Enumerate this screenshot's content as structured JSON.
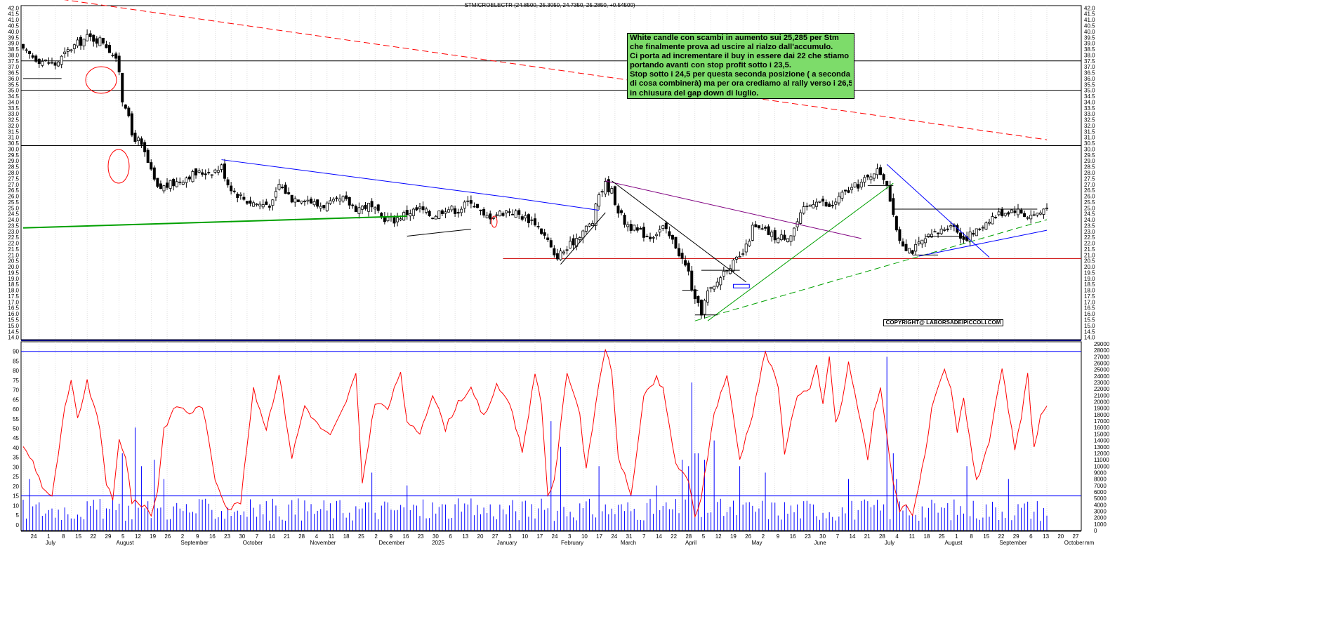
{
  "header": {
    "ohlc_text": "STMICROELECTR (24.8500, 25.3050, 24.7350, 25.2850, +0.54500)"
  },
  "annotation": {
    "lines": [
      "White candle con scambi in aumento sui 25,285 per Stm",
      "che finalmente prova ad uscire al rialzo dall'accumulo.",
      "Ci porta ad incrementare il buy in essere dai 22 che stiamo",
      "portando avanti con stop profit sotto i 23,5.",
      "Stop sotto i 24,5 per questa seconda posizione ( a seconda",
      "di cosa combinerà) ma per ora crediamo al rally verso i 26,5",
      "in chiusura del gap down di luglio."
    ],
    "background": "#7ddc6a"
  },
  "copyright": "COPYRIGHT@ LABORSADEIPICCOLI.COM",
  "colors": {
    "candle_border": "#000000",
    "volume": "#0000ff",
    "oscillator": "#ff0000",
    "downtrend": "#ff0000",
    "support": "#00a000",
    "resistance": "#0000ff",
    "divider": "#000080"
  },
  "chart_data": [
    {
      "type": "candlestick",
      "ylim": [
        13.8,
        42.2
      ],
      "y_ticks": [
        "14.0",
        "14.5",
        "15.0",
        "15.5",
        "16.0",
        "16.5",
        "17.0",
        "17.5",
        "18.0",
        "18.5",
        "19.0",
        "19.5",
        "20.0",
        "20.5",
        "21.0",
        "21.5",
        "22.0",
        "22.5",
        "23.0",
        "23.5",
        "24.0",
        "24.5",
        "25.0",
        "25.5",
        "26.0",
        "26.5",
        "27.0",
        "27.5",
        "28.0",
        "28.5",
        "29.0",
        "29.5",
        "30.0",
        "30.5",
        "31.0",
        "31.5",
        "32.0",
        "32.5",
        "33.0",
        "33.5",
        "34.0",
        "34.5",
        "35.0",
        "35.5",
        "36.0",
        "36.5",
        "37.0",
        "37.5",
        "38.0",
        "38.5",
        "39.0",
        "39.5",
        "40.0",
        "40.5",
        "41.0",
        "41.5",
        "42.0"
      ],
      "anchors_close": [
        [
          0,
          38.3
        ],
        [
          5,
          37.6
        ],
        [
          10,
          37.2
        ],
        [
          15,
          38.6
        ],
        [
          20,
          39.5
        ],
        [
          25,
          39.2
        ],
        [
          28,
          38.1
        ],
        [
          30,
          36.7
        ],
        [
          31,
          34.2
        ],
        [
          32,
          33.8
        ],
        [
          34,
          31.2
        ],
        [
          36,
          30.7
        ],
        [
          38,
          29.6
        ],
        [
          40,
          28.0
        ],
        [
          42,
          26.6
        ],
        [
          45,
          26.9
        ],
        [
          48,
          27.2
        ],
        [
          52,
          27.8
        ],
        [
          56,
          28.0
        ],
        [
          60,
          28.2
        ],
        [
          62,
          28.5
        ],
        [
          64,
          27.1
        ],
        [
          66,
          26.4
        ],
        [
          70,
          25.6
        ],
        [
          74,
          25.3
        ],
        [
          78,
          25.4
        ],
        [
          80,
          27.0
        ],
        [
          84,
          25.8
        ],
        [
          88,
          25.9
        ],
        [
          92,
          25.2
        ],
        [
          96,
          25.3
        ],
        [
          100,
          25.7
        ],
        [
          104,
          25.0
        ],
        [
          108,
          25.2
        ],
        [
          112,
          24.2
        ],
        [
          116,
          24.0
        ],
        [
          120,
          24.6
        ],
        [
          124,
          24.9
        ],
        [
          128,
          24.3
        ],
        [
          132,
          25.0
        ],
        [
          136,
          24.8
        ],
        [
          140,
          25.7
        ],
        [
          144,
          24.2
        ],
        [
          148,
          24.5
        ],
        [
          152,
          24.8
        ],
        [
          156,
          24.3
        ],
        [
          160,
          23.8
        ],
        [
          164,
          22.2
        ],
        [
          166,
          20.8
        ],
        [
          170,
          21.5
        ],
        [
          174,
          22.8
        ],
        [
          178,
          23.8
        ],
        [
          180,
          26.2
        ],
        [
          182,
          27.0
        ],
        [
          184,
          26.4
        ],
        [
          186,
          24.8
        ],
        [
          188,
          23.8
        ],
        [
          192,
          23.0
        ],
        [
          196,
          22.6
        ],
        [
          200,
          23.3
        ],
        [
          204,
          21.8
        ],
        [
          206,
          20.6
        ],
        [
          208,
          19.5
        ],
        [
          210,
          17.0
        ],
        [
          212,
          16.2
        ],
        [
          214,
          17.8
        ],
        [
          216,
          18.2
        ],
        [
          218,
          19.2
        ],
        [
          220,
          20.0
        ],
        [
          222,
          20.3
        ],
        [
          224,
          20.7
        ],
        [
          226,
          21.6
        ],
        [
          228,
          23.3
        ],
        [
          232,
          23.0
        ],
        [
          236,
          22.4
        ],
        [
          240,
          22.8
        ],
        [
          244,
          24.8
        ],
        [
          248,
          25.8
        ],
        [
          252,
          25.0
        ],
        [
          256,
          26.1
        ],
        [
          260,
          26.8
        ],
        [
          264,
          27.5
        ],
        [
          266,
          28.2
        ],
        [
          268,
          28.0
        ],
        [
          270,
          27.2
        ],
        [
          272,
          24.1
        ],
        [
          274,
          22.4
        ],
        [
          276,
          21.7
        ],
        [
          278,
          21.4
        ],
        [
          282,
          22.3
        ],
        [
          286,
          22.9
        ],
        [
          290,
          23.7
        ],
        [
          294,
          22.4
        ],
        [
          298,
          23.0
        ],
        [
          302,
          24.1
        ],
        [
          306,
          24.6
        ],
        [
          310,
          24.9
        ],
        [
          314,
          24.3
        ],
        [
          318,
          24.6
        ],
        [
          320,
          25.3
        ]
      ],
      "overlay_levels": [
        37.5,
        35.0,
        30.3,
        20.7
      ],
      "trendlines": [
        {
          "color": "#ff0000",
          "style": "dashed",
          "from": [
            0,
            43.2
          ],
          "to": [
            320,
            30.8
          ]
        },
        {
          "color": "#00a000",
          "style": "solid",
          "from": [
            0,
            23.3
          ],
          "to": [
            120,
            24.3
          ]
        },
        {
          "color": "#0000ff",
          "style": "solid",
          "from": [
            62,
            29.1
          ],
          "to": [
            152,
            25.9
          ]
        },
        {
          "color": "#0000ff",
          "style": "solid",
          "from": [
            152,
            25.9
          ],
          "to": [
            180,
            24.8
          ]
        },
        {
          "color": "#800080",
          "style": "solid",
          "from": [
            182,
            27.3
          ],
          "to": [
            262,
            22.4
          ]
        },
        {
          "color": "#000000",
          "style": "solid",
          "from": [
            184,
            27.3
          ],
          "to": [
            226,
            18.7
          ]
        },
        {
          "color": "#000000",
          "style": "solid",
          "from": [
            120,
            22.6
          ],
          "to": [
            140,
            23.2
          ]
        },
        {
          "color": "#000000",
          "style": "solid",
          "from": [
            168,
            20.2
          ],
          "to": [
            182,
            24.6
          ]
        },
        {
          "color": "#00a000",
          "style": "dashed",
          "from": [
            210,
            15.4
          ],
          "to": [
            320,
            24.0
          ]
        },
        {
          "color": "#00a000",
          "style": "solid",
          "from": [
            214,
            15.4
          ],
          "to": [
            272,
            27.1
          ]
        },
        {
          "color": "#0000ff",
          "style": "solid",
          "from": [
            270,
            28.7
          ],
          "to": [
            302,
            20.8
          ]
        },
        {
          "color": "#0000ff",
          "style": "solid",
          "from": [
            280,
            20.9
          ],
          "to": [
            320,
            23.1
          ]
        }
      ]
    },
    {
      "type": "line",
      "name": "",
      "ylim": [
        -3,
        95
      ],
      "y_ticks": [
        "0",
        "5",
        "10",
        "15",
        "20",
        "25",
        "30",
        "35",
        "40",
        "45",
        "50",
        "55",
        "60",
        "65",
        "70",
        "75",
        "80",
        "85",
        "90"
      ],
      "reference_levels": [
        90,
        15
      ],
      "anchors": [
        [
          0,
          40
        ],
        [
          3,
          33
        ],
        [
          6,
          20
        ],
        [
          9,
          14
        ],
        [
          13,
          60
        ],
        [
          15,
          74
        ],
        [
          17,
          55
        ],
        [
          20,
          74
        ],
        [
          24,
          50
        ],
        [
          26,
          22
        ],
        [
          28,
          12
        ],
        [
          30,
          44
        ],
        [
          32,
          36
        ],
        [
          34,
          12
        ],
        [
          38,
          10
        ],
        [
          40,
          5
        ],
        [
          42,
          18
        ],
        [
          44,
          50
        ],
        [
          48,
          62
        ],
        [
          52,
          58
        ],
        [
          56,
          62
        ],
        [
          60,
          24
        ],
        [
          64,
          8
        ],
        [
          68,
          12
        ],
        [
          72,
          70
        ],
        [
          76,
          50
        ],
        [
          80,
          78
        ],
        [
          84,
          35
        ],
        [
          88,
          62
        ],
        [
          92,
          52
        ],
        [
          96,
          46
        ],
        [
          100,
          60
        ],
        [
          104,
          78
        ],
        [
          106,
          22
        ],
        [
          110,
          64
        ],
        [
          114,
          60
        ],
        [
          118,
          80
        ],
        [
          120,
          52
        ],
        [
          124,
          48
        ],
        [
          128,
          68
        ],
        [
          132,
          50
        ],
        [
          136,
          64
        ],
        [
          140,
          70
        ],
        [
          144,
          56
        ],
        [
          148,
          72
        ],
        [
          152,
          64
        ],
        [
          156,
          38
        ],
        [
          160,
          78
        ],
        [
          162,
          62
        ],
        [
          164,
          16
        ],
        [
          166,
          22
        ],
        [
          170,
          80
        ],
        [
          174,
          58
        ],
        [
          176,
          28
        ],
        [
          180,
          74
        ],
        [
          182,
          92
        ],
        [
          184,
          78
        ],
        [
          186,
          36
        ],
        [
          190,
          15
        ],
        [
          194,
          66
        ],
        [
          198,
          76
        ],
        [
          200,
          70
        ],
        [
          204,
          32
        ],
        [
          208,
          22
        ],
        [
          210,
          5
        ],
        [
          212,
          14
        ],
        [
          216,
          58
        ],
        [
          220,
          78
        ],
        [
          224,
          34
        ],
        [
          228,
          58
        ],
        [
          232,
          90
        ],
        [
          236,
          72
        ],
        [
          238,
          38
        ],
        [
          242,
          68
        ],
        [
          246,
          70
        ],
        [
          248,
          82
        ],
        [
          250,
          62
        ],
        [
          252,
          88
        ],
        [
          254,
          52
        ],
        [
          256,
          64
        ],
        [
          258,
          84
        ],
        [
          262,
          52
        ],
        [
          264,
          34
        ],
        [
          266,
          60
        ],
        [
          268,
          70
        ],
        [
          272,
          22
        ],
        [
          274,
          8
        ],
        [
          276,
          10
        ],
        [
          278,
          6
        ],
        [
          282,
          36
        ],
        [
          284,
          60
        ],
        [
          288,
          80
        ],
        [
          290,
          70
        ],
        [
          292,
          48
        ],
        [
          294,
          66
        ],
        [
          298,
          22
        ],
        [
          302,
          44
        ],
        [
          306,
          80
        ],
        [
          308,
          60
        ],
        [
          310,
          38
        ],
        [
          312,
          56
        ],
        [
          314,
          78
        ],
        [
          316,
          40
        ],
        [
          318,
          56
        ],
        [
          320,
          62
        ]
      ]
    },
    {
      "type": "bar",
      "name": "volume",
      "ylim": [
        0,
        29000
      ],
      "y_ticks": [
        "0",
        "1000",
        "2000",
        "3000",
        "4000",
        "5000",
        "6000",
        "7000",
        "8000",
        "9000",
        "10000",
        "11000",
        "12000",
        "13000",
        "14000",
        "15000",
        "16000",
        "17000",
        "18000",
        "19000",
        "20000",
        "21000",
        "22000",
        "23000",
        "24000",
        "25000",
        "26000",
        "27000",
        "28000",
        "29000"
      ],
      "spikes": [
        [
          2,
          8000
        ],
        [
          31,
          12000
        ],
        [
          35,
          16000
        ],
        [
          37,
          10000
        ],
        [
          41,
          11000
        ],
        [
          44,
          8000
        ],
        [
          109,
          9000
        ],
        [
          120,
          7000
        ],
        [
          165,
          17000
        ],
        [
          168,
          13000
        ],
        [
          180,
          10000
        ],
        [
          198,
          7000
        ],
        [
          206,
          11000
        ],
        [
          208,
          10000
        ],
        [
          209,
          23000
        ],
        [
          210,
          12000
        ],
        [
          211,
          12000
        ],
        [
          213,
          11000
        ],
        [
          216,
          14000
        ],
        [
          224,
          10000
        ],
        [
          232,
          9000
        ],
        [
          258,
          8000
        ],
        [
          270,
          27000
        ],
        [
          272,
          12000
        ],
        [
          273,
          8000
        ],
        [
          295,
          10000
        ],
        [
          308,
          8000
        ]
      ],
      "base_range": [
        1500,
        5000
      ]
    }
  ],
  "x_axis": {
    "day_labels": [
      "24",
      "1",
      "8",
      "15",
      "22",
      "29",
      "5",
      "12",
      "19",
      "26",
      "2",
      "9",
      "16",
      "23",
      "30",
      "7",
      "14",
      "21",
      "28",
      "4",
      "11",
      "18",
      "25",
      "2",
      "9",
      "16",
      "23",
      "30",
      "6",
      "13",
      "20",
      "27",
      "3",
      "10",
      "17",
      "24",
      "3",
      "10",
      "17",
      "24",
      "31",
      "7",
      "14",
      "22",
      "28",
      "5",
      "12",
      "19",
      "26",
      "2",
      "9",
      "16",
      "23",
      "30",
      "7",
      "14",
      "21",
      "28",
      "4",
      "11",
      "18",
      "25",
      "1",
      "8",
      "15",
      "22",
      "29",
      "6",
      "13",
      "20",
      "27"
    ],
    "month_labels": [
      "July",
      "August",
      "September",
      "October",
      "November",
      "December",
      "2025",
      "January",
      "February",
      "March",
      "April",
      "May",
      "June",
      "July",
      "August",
      "September",
      "October"
    ],
    "far_right_label": "mm"
  }
}
